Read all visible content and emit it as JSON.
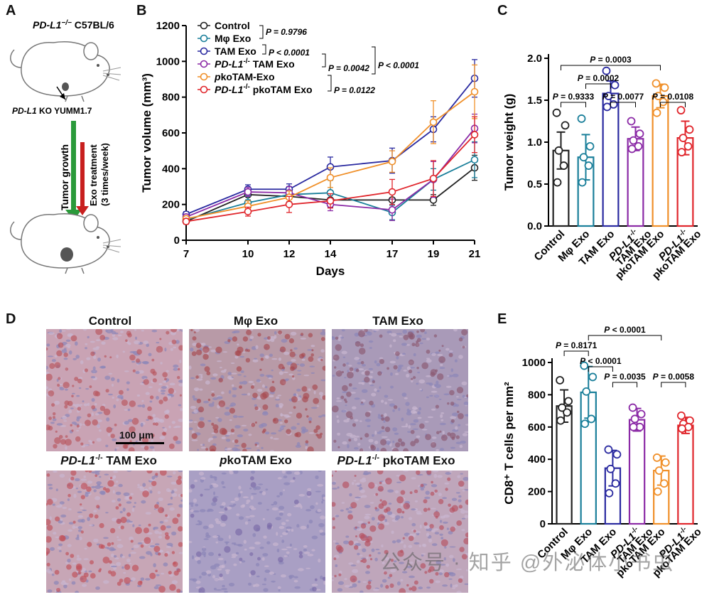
{
  "panels": {
    "A": {
      "letter": "A",
      "mouse_label_top": "PD-L1",
      "mouse_label_top_sup": "−/−",
      "mouse_label_top_strain": " C57BL/6",
      "ko_label_gene": "PD-L1",
      "ko_label_rest": " KO YUMM1.7",
      "arrow_growth": "Tumor growth",
      "arrow_treatment_1": "Exo treatment",
      "arrow_treatment_2": "(3 times/week)"
    },
    "B": {
      "letter": "B"
    },
    "C": {
      "letter": "C"
    },
    "D": {
      "letter": "D",
      "titles": [
        "Control",
        "Mφ Exo",
        "TAM Exo"
      ],
      "titles_bottom": [
        {
          "gene": "PD-L1",
          "sup": "-/-",
          "rest": " TAM Exo"
        },
        {
          "gene": "p",
          "sup": "",
          "rest": "koTAM Exo"
        },
        {
          "gene": "PD-L1",
          "sup": "-/-",
          "rest": "  pkoTAM Exo"
        }
      ],
      "scale_bar": "100 μm",
      "tile_colors": [
        "#c9a3b4",
        "#b89aa7",
        "#a99ab8",
        "#c7a6b6",
        "#a99fc4",
        "#bfa6bb"
      ],
      "tile_spot_colors": [
        "#b8545c",
        "#a8484f",
        "#8a5770",
        "#c04f57",
        "#7a6aa8",
        "#b5505f"
      ]
    },
    "E": {
      "letter": "E"
    }
  },
  "watermark": "公众号 · 知乎 @外泌体小书虫",
  "chart_data": [
    {
      "id": "B",
      "type": "line",
      "ylabel": "Tumor volume (mm³)",
      "xlabel": "Days",
      "x": [
        7,
        10,
        12,
        14,
        17,
        19,
        21
      ],
      "ylim": [
        0,
        1200
      ],
      "yticks": [
        0,
        200,
        400,
        600,
        800,
        1000,
        1200
      ],
      "series": [
        {
          "name": "Control",
          "color": "#222222",
          "values": [
            105,
            255,
            245,
            225,
            225,
            225,
            405
          ],
          "err": [
            15,
            30,
            35,
            40,
            50,
            30,
            70
          ]
        },
        {
          "name": "Mφ Exo",
          "color": "#1a7f9a",
          "values": [
            115,
            210,
            255,
            265,
            155,
            340,
            450
          ],
          "err": [
            15,
            40,
            40,
            70,
            40,
            60,
            100
          ]
        },
        {
          "name": "TAM Exo",
          "color": "#2a2aa0",
          "values": [
            145,
            285,
            285,
            410,
            445,
            620,
            905
          ],
          "err": [
            15,
            25,
            30,
            55,
            70,
            70,
            105
          ]
        },
        {
          "name": "PD-L1-/- TAM Exo",
          "color": "#8b2aa6",
          "values": [
            130,
            270,
            265,
            200,
            170,
            340,
            625
          ],
          "err": [
            15,
            25,
            35,
            35,
            60,
            100,
            80
          ]
        },
        {
          "name": "pkoTAM-Exo",
          "color": "#f0902a",
          "values": [
            120,
            190,
            240,
            350,
            440,
            660,
            830
          ],
          "err": [
            15,
            30,
            35,
            55,
            60,
            120,
            150
          ]
        },
        {
          "name": "PD-L1-/- pkoTAM Exo",
          "color": "#e0262c",
          "values": [
            105,
            160,
            200,
            220,
            270,
            345,
            590
          ],
          "err": [
            15,
            25,
            45,
            40,
            70,
            100,
            100
          ]
        }
      ],
      "legend": [
        {
          "label": "Control",
          "italic_prefix": "",
          "sup": "",
          "color": "#222222"
        },
        {
          "label": "Mφ Exo",
          "italic_prefix": "",
          "sup": "",
          "color": "#1a7f9a"
        },
        {
          "label": "TAM Exo",
          "italic_prefix": "",
          "sup": "",
          "color": "#2a2aa0"
        },
        {
          "label": " TAM Exo",
          "italic_prefix": "PD-L1",
          "sup": "-/-",
          "color": "#8b2aa6"
        },
        {
          "label": "koTAM-Exo",
          "italic_prefix": "p",
          "sup": "",
          "color": "#f0902a"
        },
        {
          "label": " pkoTAM Exo",
          "italic_prefix": "PD-L1",
          "sup": "-/-",
          "color": "#e0262c"
        }
      ],
      "stats": [
        {
          "text": "P = 0.9796"
        },
        {
          "text": "P < 0.0001"
        },
        {
          "text": "P = 0.0042"
        },
        {
          "text": "P < 0.0001"
        },
        {
          "text": "P = 0.0122"
        }
      ]
    },
    {
      "id": "C",
      "type": "bar",
      "ylabel": "Tumor weight (g)",
      "ylim": [
        0,
        2.0
      ],
      "yticks": [
        "0.0",
        "0.5",
        "1.0",
        "1.5",
        "2.0"
      ],
      "categories": [
        "Control",
        "Mφ Exo",
        "TAM Exo",
        "PD-L1-/- TAM Exo",
        "pkoTAM Exo",
        "PD-L1-/- pkoTAM Exo"
      ],
      "category_labels": [
        {
          "lines": [
            "Control"
          ]
        },
        {
          "lines": [
            "Mφ Exo"
          ]
        },
        {
          "lines": [
            "TAM Exo"
          ]
        },
        {
          "lines": [
            "PD-L1-/-",
            "TAM Exo"
          ]
        },
        {
          "lines": [
            "pkoTAM Exo"
          ]
        },
        {
          "lines": [
            "PD-L1-/-",
            "pkoTAM Exo"
          ]
        }
      ],
      "colors": [
        "#222222",
        "#1a7f9a",
        "#2a2aa0",
        "#8b2aa6",
        "#f0902a",
        "#e0262c"
      ],
      "values": [
        0.9,
        0.82,
        1.58,
        1.04,
        1.55,
        1.05
      ],
      "err": [
        0.22,
        0.27,
        0.15,
        0.14,
        0.14,
        0.2
      ],
      "points": [
        [
          1.35,
          1.2,
          0.9,
          0.72,
          0.52
        ],
        [
          1.28,
          0.95,
          0.82,
          0.72,
          0.52
        ],
        [
          1.85,
          1.68,
          1.55,
          1.45,
          1.42
        ],
        [
          1.25,
          1.1,
          1.02,
          0.95,
          0.92
        ],
        [
          1.7,
          1.65,
          1.55,
          1.48,
          1.35
        ],
        [
          1.38,
          1.15,
          1.05,
          0.95,
          0.88
        ]
      ],
      "comparisons": [
        {
          "a": 0,
          "b": 1,
          "text": "P = 0.9333",
          "level": 0
        },
        {
          "a": 2,
          "b": 3,
          "text": "P = 0.0077",
          "level": 0
        },
        {
          "a": 4,
          "b": 5,
          "text": "P = 0.0108",
          "level": 0
        },
        {
          "a": 1,
          "b": 2,
          "text": "P = 0.0002",
          "level": 1
        },
        {
          "a": 0,
          "b": 4,
          "text": "P = 0.0003",
          "level": 2
        }
      ]
    },
    {
      "id": "E",
      "type": "bar",
      "ylabel": "CD8⁺ T cells per mm²",
      "ylim": [
        0,
        1000
      ],
      "yticks": [
        "0",
        "200",
        "400",
        "600",
        "800",
        "1000"
      ],
      "categories": [
        "Control",
        "Mφ Exo",
        "TAM Exo",
        "PD-L1-/- TAM Exo",
        "pkoTAM Exo",
        "PD-L1-/- pkoTAM Exo"
      ],
      "category_labels": [
        {
          "lines": [
            "Control"
          ]
        },
        {
          "lines": [
            "Mφ Exo"
          ]
        },
        {
          "lines": [
            "TAM Exo"
          ]
        },
        {
          "lines": [
            "PD-L1-/-",
            "TAM Exo"
          ]
        },
        {
          "lines": [
            "pkoTAM Exo"
          ]
        },
        {
          "lines": [
            "PD-L1-/-",
            "pkoTAM Exo"
          ]
        }
      ],
      "colors": [
        "#222222",
        "#1a7f9a",
        "#2a2aa0",
        "#8b2aa6",
        "#f0902a",
        "#e0262c"
      ],
      "values": [
        730,
        815,
        345,
        645,
        330,
        610
      ],
      "err": [
        100,
        160,
        110,
        70,
        90,
        50
      ],
      "points": [
        [
          890,
          760,
          720,
          690,
          640
        ],
        [
          980,
          910,
          820,
          650,
          620
        ],
        [
          460,
          430,
          340,
          250,
          190
        ],
        [
          720,
          680,
          650,
          600,
          600
        ],
        [
          410,
          380,
          330,
          250,
          200
        ],
        [
          670,
          640,
          620,
          600,
          590
        ]
      ],
      "comparisons": [
        {
          "a": 0,
          "b": 1,
          "text": "P = 0.8171",
          "level": 1
        },
        {
          "a": 1,
          "b": 2,
          "text": "P < 0.0001",
          "level": 0
        },
        {
          "a": 2,
          "b": 3,
          "text": "P = 0.0035",
          "level": -1
        },
        {
          "a": 4,
          "b": 5,
          "text": "P = 0.0058",
          "level": -1
        },
        {
          "a": 1,
          "b": 4,
          "text": "P < 0.0001",
          "level": 2
        }
      ]
    }
  ]
}
